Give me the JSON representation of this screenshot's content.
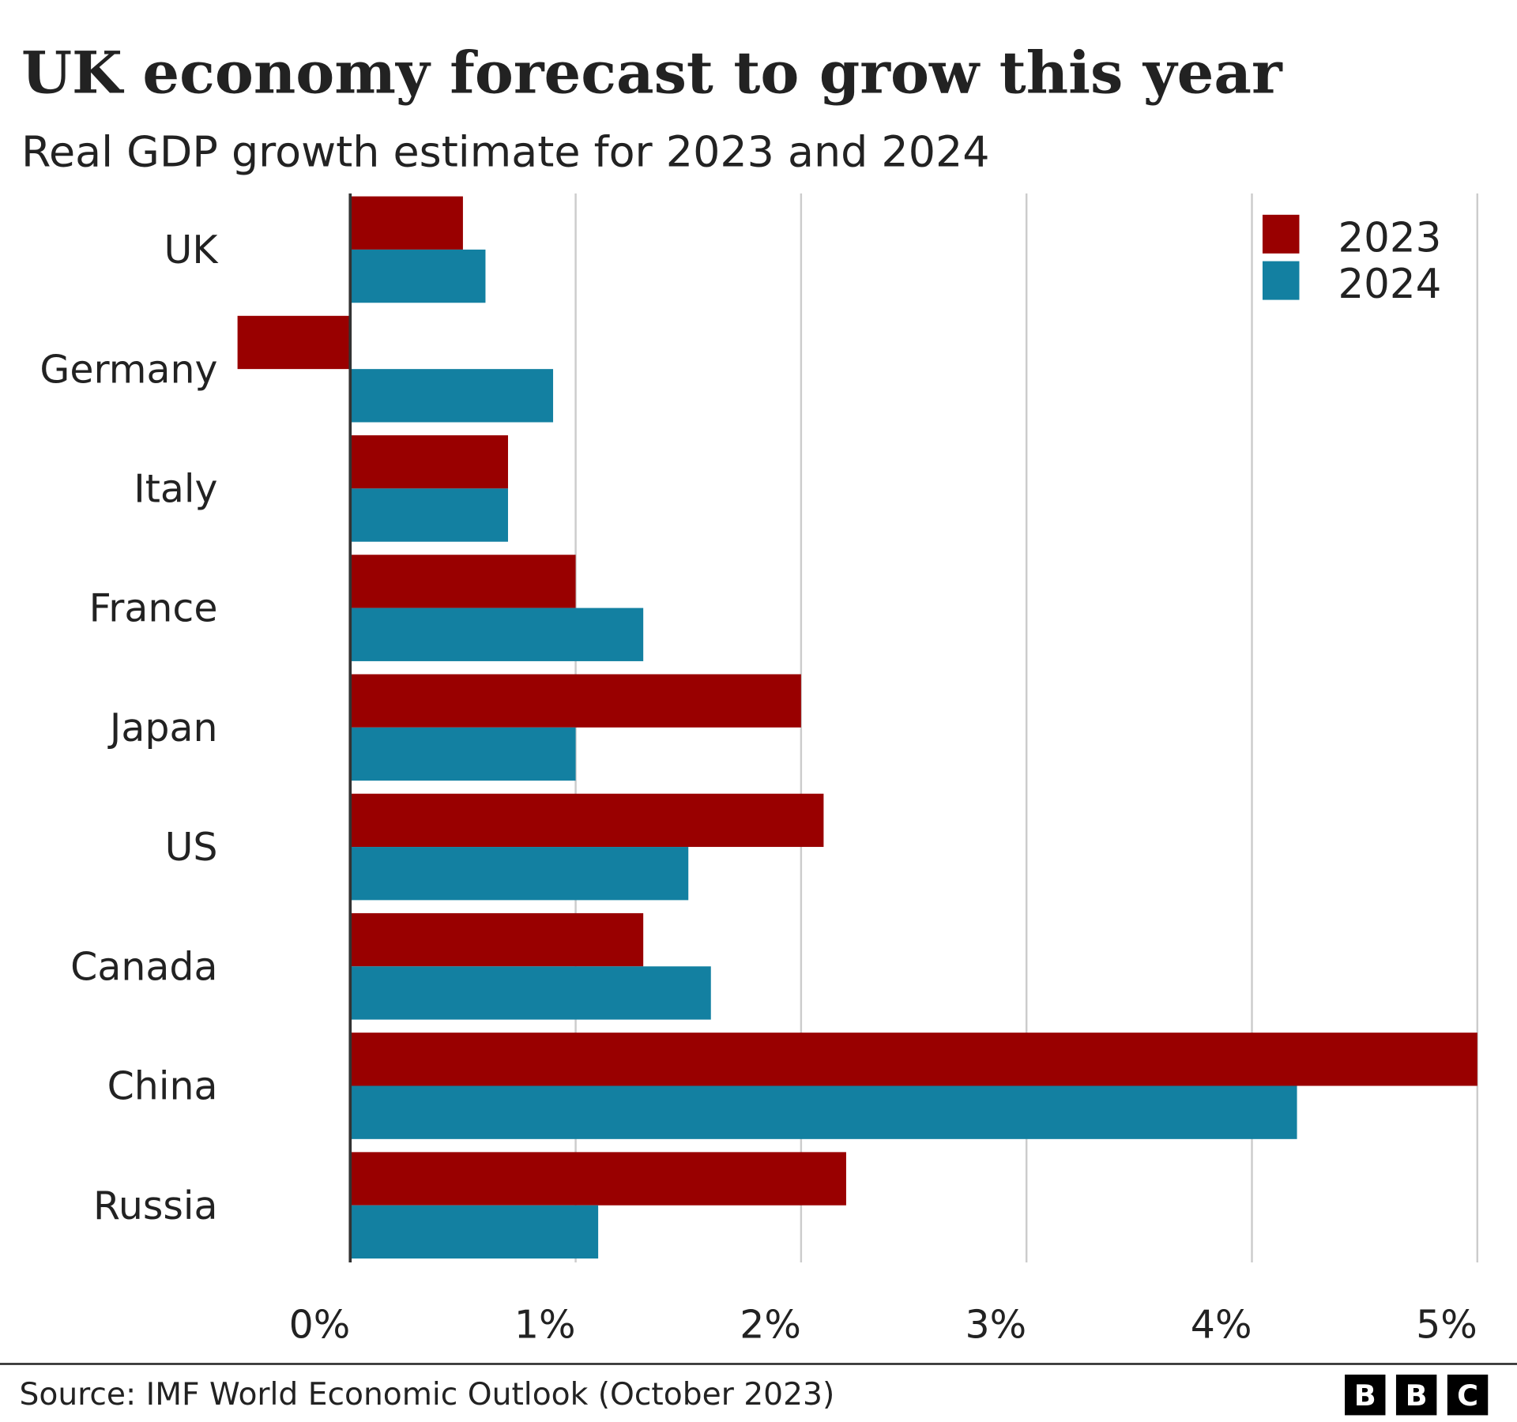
{
  "chart_data": {
    "type": "bar",
    "orientation": "horizontal",
    "title": "UK economy forecast to grow this year",
    "subtitle": "Real GDP growth estimate for 2023 and 2024",
    "categories": [
      "UK",
      "Germany",
      "Italy",
      "France",
      "Japan",
      "US",
      "Canada",
      "China",
      "Russia"
    ],
    "series": [
      {
        "name": "2023",
        "color": "#990000",
        "values": [
          0.5,
          -0.5,
          0.7,
          1.0,
          2.0,
          2.1,
          1.3,
          5.0,
          2.2
        ]
      },
      {
        "name": "2024",
        "color": "#1380A1",
        "values": [
          0.6,
          0.9,
          0.7,
          1.3,
          1.0,
          1.5,
          1.6,
          4.2,
          1.1
        ]
      }
    ],
    "xlim": [
      -0.5,
      5
    ],
    "xticks": [
      0,
      1,
      2,
      3,
      4,
      5
    ],
    "xtick_labels": [
      "0%",
      "1%",
      "2%",
      "3%",
      "4%",
      "5%"
    ],
    "grid": true,
    "legend_position": "top-right",
    "source": "Source: IMF World Economic Outlook (October 2023)",
    "logo": "BBC"
  }
}
